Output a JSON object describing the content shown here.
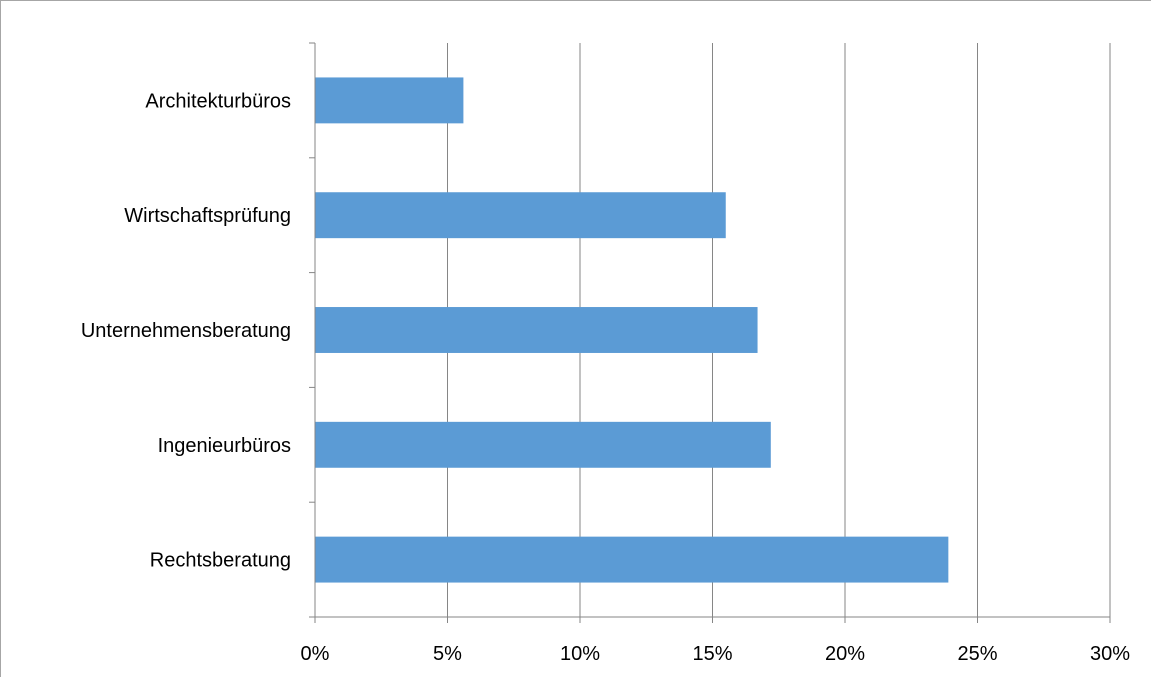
{
  "chart_data": {
    "type": "bar",
    "orientation": "horizontal",
    "title": "",
    "xlabel": "",
    "ylabel": "",
    "categories": [
      "Architekturbüros",
      "Wirtschaftsprüfung",
      "Unternehmensberatung",
      "Ingenieurbüros",
      "Rechtsberatung"
    ],
    "series": [
      {
        "values": [
          5.6,
          15.5,
          16.7,
          17.2,
          23.9
        ],
        "color": "#5b9bd5"
      }
    ],
    "xlim": [
      0,
      30
    ],
    "xticks": [
      0,
      5,
      10,
      15,
      20,
      25,
      30
    ],
    "xtick_labels": [
      "0%",
      "5%",
      "10%",
      "15%",
      "20%",
      "25%",
      "30%"
    ],
    "grid": "vertical",
    "legend": "none",
    "gridline_color": "#868686",
    "axis_color": "#868686"
  }
}
